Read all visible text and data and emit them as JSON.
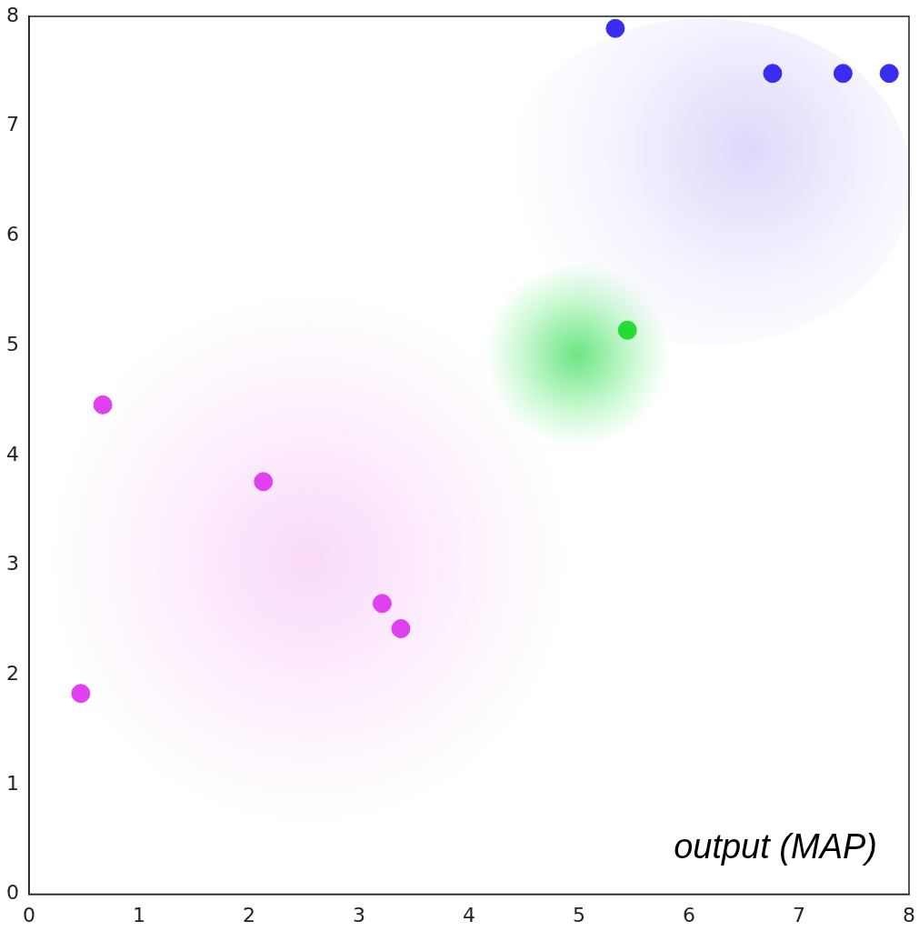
{
  "chart_data": {
    "type": "scatter",
    "xlim": [
      0,
      8
    ],
    "ylim": [
      0,
      8
    ],
    "xticks": [
      0,
      1,
      2,
      3,
      4,
      5,
      6,
      7,
      8
    ],
    "yticks": [
      0,
      1,
      2,
      3,
      4,
      5,
      6,
      7,
      8
    ],
    "grid": false,
    "legend": false,
    "marker": "circle",
    "series": [
      {
        "color": "#3a2cf0",
        "x": [
          5.33,
          6.76,
          7.4,
          7.82
        ],
        "values": [
          7.89,
          7.48,
          7.48,
          7.48
        ]
      },
      {
        "color": "#22dd33",
        "x": [
          5.44
        ],
        "values": [
          5.14
        ]
      },
      {
        "color": "#e040f0",
        "x": [
          0.67,
          2.13,
          3.21,
          3.38,
          0.47
        ],
        "values": [
          4.46,
          3.76,
          2.65,
          2.42,
          1.83
        ]
      }
    ],
    "annotations": [
      "output (MAP)"
    ]
  }
}
